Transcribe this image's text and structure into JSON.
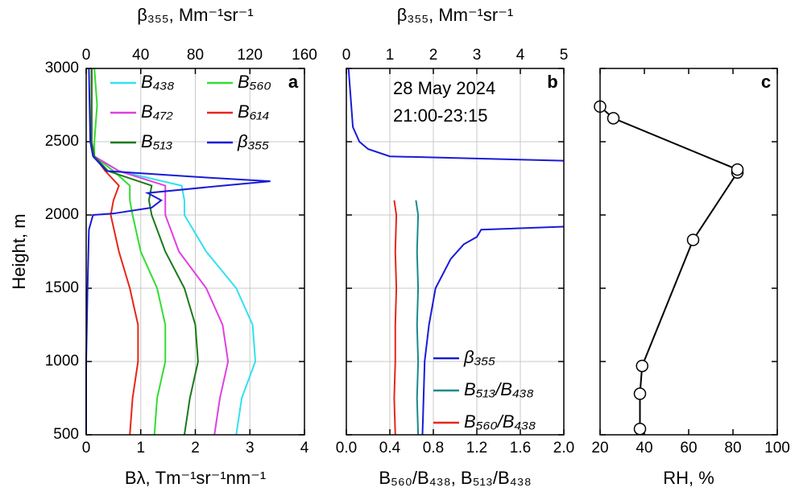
{
  "chart_data": [
    {
      "type": "line",
      "panel_label": "a",
      "xlabel": "Bλ, Tm⁻¹sr⁻¹nm⁻¹",
      "x2label": "β₃₅₅, Mm⁻¹sr⁻¹",
      "ylabel": "Height, m",
      "xlim": [
        0,
        4
      ],
      "xticks": [
        0,
        1,
        2,
        3,
        4
      ],
      "x2lim": [
        0,
        160
      ],
      "x2ticks": [
        0,
        40,
        80,
        120,
        160
      ],
      "ylim": [
        500,
        3000
      ],
      "yticks": [
        500,
        1000,
        1500,
        2000,
        2500,
        3000
      ],
      "grid": true,
      "legend": "upper right",
      "series": [
        {
          "name": "B₄₃₈",
          "color": "#33e0f0",
          "heights": [
            500,
            750,
            1000,
            1250,
            1500,
            1750,
            2000,
            2100,
            2200,
            2300,
            2400,
            2500,
            2750,
            3000
          ],
          "values": [
            2.75,
            2.85,
            3.1,
            3.05,
            2.75,
            2.2,
            1.8,
            1.8,
            1.75,
            0.6,
            0.15,
            0.1,
            0.1,
            0.1
          ]
        },
        {
          "name": "B₅₆₀",
          "color": "#33dd33",
          "heights": [
            500,
            750,
            1000,
            1250,
            1500,
            1750,
            2000,
            2100,
            2200,
            2300,
            2400,
            2500,
            2750,
            3000
          ],
          "values": [
            1.25,
            1.3,
            1.45,
            1.45,
            1.3,
            1.0,
            0.85,
            0.8,
            0.8,
            0.5,
            0.15,
            0.15,
            0.2,
            0.15
          ]
        },
        {
          "name": "B₄₇₂",
          "color": "#e040e0",
          "heights": [
            500,
            750,
            1000,
            1250,
            1500,
            1750,
            2000,
            2100,
            2200,
            2300,
            2400,
            2500,
            2750,
            3000
          ],
          "values": [
            2.35,
            2.45,
            2.6,
            2.5,
            2.2,
            1.7,
            1.45,
            1.45,
            1.45,
            0.6,
            0.15,
            0.1,
            0.1,
            0.1
          ]
        },
        {
          "name": "B₆₁₄",
          "color": "#e6261a",
          "heights": [
            500,
            750,
            1000,
            1250,
            1500,
            1750,
            2000,
            2100,
            2200,
            2300,
            2400,
            2500,
            2750,
            3000
          ],
          "values": [
            0.8,
            0.85,
            0.95,
            0.95,
            0.8,
            0.6,
            0.45,
            0.5,
            0.6,
            0.35,
            0.15,
            0.1,
            0.1,
            0.1
          ]
        },
        {
          "name": "B₅₁₃",
          "color": "#1a7a1a",
          "heights": [
            500,
            750,
            1000,
            1250,
            1500,
            1750,
            2000,
            2100,
            2200,
            2300,
            2400,
            2500,
            2750,
            3000
          ],
          "values": [
            1.8,
            1.9,
            2.05,
            2.0,
            1.8,
            1.45,
            1.2,
            1.15,
            1.2,
            0.4,
            0.15,
            0.1,
            0.1,
            0.1
          ]
        },
        {
          "name": "β₃₅₅",
          "color": "#1a1ad9",
          "axis": "x2",
          "heights": [
            500,
            1000,
            1500,
            1900,
            2000,
            2010,
            2050,
            2100,
            2150,
            2200,
            2230,
            2260,
            2300,
            2400,
            2500,
            3000
          ],
          "values": [
            0,
            0,
            1,
            2,
            5,
            20,
            48,
            55,
            45,
            100,
            135,
            80,
            15,
            5,
            3,
            2
          ]
        }
      ]
    },
    {
      "type": "line",
      "panel_label": "b",
      "xlabel": "B₅₆₀/B₄₃₈,  B₅₁₃/B₄₃₈",
      "x2label": "β₃₅₅, Mm⁻¹sr⁻¹",
      "xlim": [
        0,
        2
      ],
      "xticks": [
        {
          "value": 0,
          "label": "0.0"
        },
        0.4,
        0.8,
        1.2,
        1.6,
        {
          "value": 2,
          "label": "2.0"
        }
      ],
      "x2lim": [
        0,
        5
      ],
      "x2ticks": [
        0,
        1,
        2,
        3,
        4,
        5
      ],
      "ylim": [
        500,
        3000
      ],
      "yticks": [
        500,
        1000,
        1500,
        2000,
        2500,
        3000
      ],
      "grid": true,
      "legend": "lower right",
      "annotations": [
        "28 May 2024",
        "21:00-23:15"
      ],
      "series": [
        {
          "name": "β₃₅₅",
          "color": "#1a1ad9",
          "axis": "x2",
          "heights": [
            500,
            1000,
            1250,
            1500,
            1700,
            1800,
            1850,
            1900,
            1920,
            2150,
            2370,
            2400,
            2450,
            2500,
            2600,
            2800,
            3000
          ],
          "values": [
            1.75,
            1.8,
            1.9,
            2.05,
            2.4,
            2.7,
            3.0,
            3.1,
            5,
            null,
            5,
            1.0,
            0.5,
            0.3,
            0.15,
            0.1,
            0.05
          ]
        },
        {
          "name": "B₅₁₃/B₄₃₈",
          "color": "#1a8a8a",
          "heights": [
            500,
            750,
            1000,
            1250,
            1500,
            1750,
            2000,
            2100
          ],
          "values": [
            0.66,
            0.65,
            0.66,
            0.65,
            0.66,
            0.65,
            0.66,
            0.64
          ]
        },
        {
          "name": "B₅₆₀/B₄₃₈",
          "color": "#e6261a",
          "heights": [
            500,
            750,
            1000,
            1250,
            1500,
            1750,
            2000,
            2100
          ],
          "values": [
            0.45,
            0.44,
            0.45,
            0.45,
            0.46,
            0.45,
            0.46,
            0.44
          ]
        }
      ]
    },
    {
      "type": "scatter",
      "panel_label": "c",
      "xlabel": "RH, %",
      "xlim": [
        20,
        100
      ],
      "xticks": [
        20,
        40,
        60,
        80,
        100
      ],
      "ylim": [
        500,
        3000
      ],
      "yticks": [
        500,
        1000,
        1500,
        2000,
        2500,
        3000
      ],
      "grid": false,
      "series": [
        {
          "color": "#000000",
          "heights": [
            540,
            780,
            970,
            1830,
            2290,
            2310,
            2660,
            2740
          ],
          "values": [
            38,
            38,
            39,
            62,
            82,
            82,
            26,
            20
          ]
        }
      ]
    }
  ]
}
